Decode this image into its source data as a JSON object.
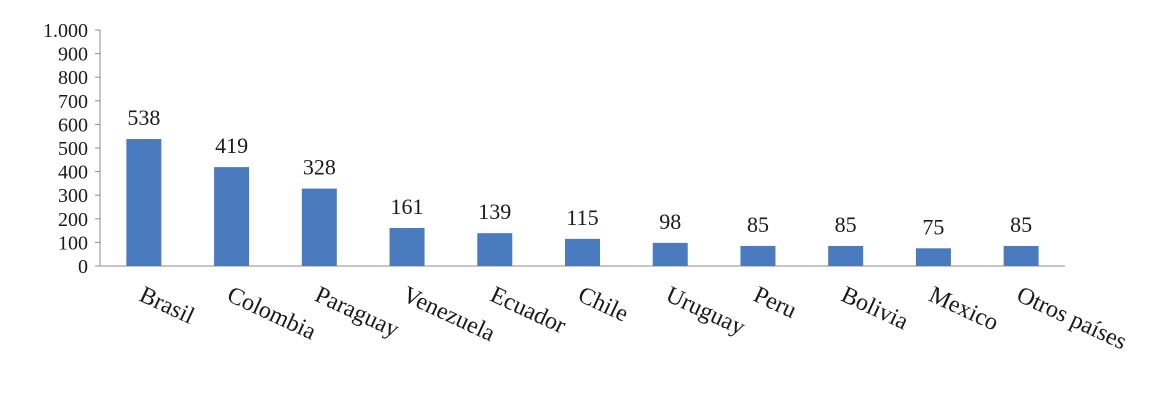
{
  "chart_data": {
    "type": "bar",
    "categories": [
      "Brasil",
      "Colombia",
      "Paraguay",
      "Venezuela",
      "Ecuador",
      "Chile",
      "Uruguay",
      "Peru",
      "Bolivia",
      "Mexico",
      "Otros países"
    ],
    "values": [
      538,
      419,
      328,
      161,
      139,
      115,
      98,
      85,
      85,
      75,
      85
    ],
    "data_labels": [
      "538",
      "419",
      "328",
      "161",
      "139",
      "115",
      "98",
      "85",
      "85",
      "75",
      "85"
    ],
    "title": "",
    "xlabel": "",
    "ylabel": "",
    "ylim": [
      0,
      1000
    ],
    "yticks": [
      0,
      100,
      200,
      300,
      400,
      500,
      600,
      700,
      800,
      900,
      1000
    ],
    "ytick_labels": [
      "0",
      "100",
      "200",
      "300",
      "400",
      "500",
      "600",
      "700",
      "800",
      "900",
      "1.000"
    ],
    "grid": false,
    "legend": "none",
    "bar_color": "#4a7bbf"
  }
}
